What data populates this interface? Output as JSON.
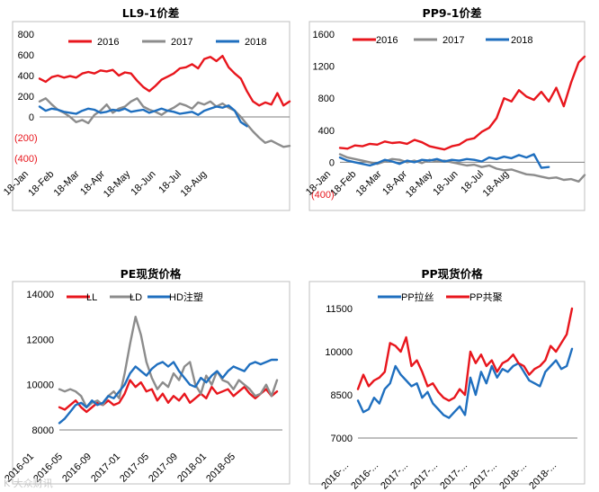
{
  "chart_data": [
    {
      "type": "line",
      "title": "LL9-1价差",
      "ylim": [
        -400,
        800
      ],
      "y_ticks": [
        800,
        600,
        400,
        200,
        0
      ],
      "y_neg_ticks": [
        "(200)",
        "(400)"
      ],
      "x_ticks": [
        "18-Jan",
        "18-Feb",
        "18-Mar",
        "18-Apr",
        "18-May",
        "18-Jun",
        "18-Jul",
        "18-Aug"
      ],
      "x_range": [
        0,
        8.2
      ],
      "grid": false,
      "legend": "top",
      "series": [
        {
          "name": "2016",
          "color": "#e8161d",
          "x": [
            0,
            0.2,
            0.4,
            0.6,
            0.8,
            1.0,
            1.2,
            1.4,
            1.6,
            1.8,
            2.0,
            2.2,
            2.4,
            2.6,
            2.8,
            3.0,
            3.2,
            3.4,
            3.6,
            3.8,
            4.0,
            4.2,
            4.4,
            4.6,
            4.8,
            5.0,
            5.2,
            5.4,
            5.6,
            5.8,
            6.0,
            6.2,
            6.4,
            6.6,
            6.8,
            7.0,
            7.2,
            7.4,
            7.6,
            7.8,
            8.0,
            8.2
          ],
          "values": [
            370,
            340,
            385,
            400,
            380,
            395,
            380,
            420,
            435,
            420,
            450,
            440,
            455,
            400,
            430,
            420,
            350,
            290,
            250,
            300,
            360,
            390,
            420,
            470,
            480,
            510,
            470,
            560,
            580,
            540,
            590,
            480,
            420,
            370,
            250,
            150,
            110,
            140,
            120,
            230,
            110,
            150
          ]
        },
        {
          "name": "2017",
          "color": "#8c8c8c",
          "x": [
            0,
            0.2,
            0.4,
            0.6,
            0.8,
            1.0,
            1.2,
            1.4,
            1.6,
            1.8,
            2.0,
            2.2,
            2.4,
            2.6,
            2.8,
            3.0,
            3.2,
            3.4,
            3.6,
            3.8,
            4.0,
            4.2,
            4.4,
            4.6,
            4.8,
            5.0,
            5.2,
            5.4,
            5.6,
            5.8,
            6.0,
            6.2,
            6.4,
            6.6,
            6.8,
            7.0,
            7.2,
            7.4,
            7.6,
            7.8,
            8.0,
            8.2
          ],
          "values": [
            150,
            180,
            120,
            70,
            40,
            0,
            -50,
            -30,
            -60,
            20,
            60,
            120,
            40,
            80,
            100,
            150,
            180,
            100,
            70,
            50,
            20,
            60,
            90,
            130,
            110,
            80,
            140,
            120,
            150,
            100,
            130,
            90,
            60,
            0,
            -70,
            -140,
            -200,
            -250,
            -230,
            -260,
            -290,
            -280
          ]
        },
        {
          "name": "2018",
          "color": "#1f6fbf",
          "x": [
            0,
            0.2,
            0.4,
            0.6,
            0.8,
            1.0,
            1.2,
            1.4,
            1.6,
            1.8,
            2.0,
            2.2,
            2.4,
            2.6,
            2.8,
            3.0,
            3.2,
            3.4,
            3.6,
            3.8,
            4.0,
            4.2,
            4.4,
            4.6,
            4.8,
            5.0,
            5.2,
            5.4,
            5.6,
            5.8,
            6.0,
            6.2,
            6.4,
            6.6,
            6.8
          ],
          "values": [
            100,
            60,
            80,
            70,
            50,
            40,
            30,
            60,
            80,
            70,
            40,
            50,
            70,
            60,
            80,
            50,
            60,
            70,
            40,
            60,
            80,
            60,
            50,
            30,
            40,
            50,
            20,
            60,
            80,
            100,
            90,
            110,
            60,
            -50,
            -90
          ]
        }
      ]
    },
    {
      "type": "line",
      "title": "PP9-1价差",
      "ylim": [
        -400,
        1600
      ],
      "y_ticks": [
        1600,
        1200,
        800,
        400,
        0
      ],
      "y_neg_ticks": [
        "(400)"
      ],
      "x_ticks": [
        "18-Jan",
        "18-Feb",
        "18-Mar",
        "18-Apr",
        "18-May",
        "18-Jun",
        "18-Jul",
        "18-Aug"
      ],
      "x_range": [
        0,
        8.2
      ],
      "grid": false,
      "legend": "top",
      "series": [
        {
          "name": "2016",
          "color": "#e8161d",
          "x": [
            0,
            0.25,
            0.5,
            0.75,
            1.0,
            1.25,
            1.5,
            1.75,
            2.0,
            2.25,
            2.5,
            2.75,
            3.0,
            3.25,
            3.5,
            3.75,
            4.0,
            4.25,
            4.5,
            4.75,
            5.0,
            5.25,
            5.5,
            5.75,
            6.0,
            6.25,
            6.5,
            6.75,
            7.0,
            7.25,
            7.5,
            7.75,
            8.0,
            8.2
          ],
          "values": [
            180,
            170,
            210,
            200,
            230,
            220,
            260,
            240,
            250,
            230,
            280,
            250,
            200,
            180,
            160,
            200,
            220,
            280,
            300,
            380,
            430,
            550,
            800,
            760,
            900,
            820,
            780,
            880,
            760,
            930,
            700,
            1000,
            1250,
            1320
          ]
        },
        {
          "name": "2017",
          "color": "#8c8c8c",
          "x": [
            0,
            0.25,
            0.5,
            0.75,
            1.0,
            1.25,
            1.5,
            1.75,
            2.0,
            2.25,
            2.5,
            2.75,
            3.0,
            3.25,
            3.5,
            3.75,
            4.0,
            4.25,
            4.5,
            4.75,
            5.0,
            5.25,
            5.5,
            5.75,
            6.0,
            6.25,
            6.5,
            6.75,
            7.0,
            7.25,
            7.5,
            7.75,
            8.0,
            8.2
          ],
          "values": [
            100,
            60,
            40,
            20,
            0,
            -20,
            10,
            40,
            30,
            0,
            20,
            -10,
            30,
            10,
            20,
            0,
            -20,
            -40,
            -30,
            -60,
            -40,
            -80,
            -100,
            -90,
            -120,
            -150,
            -160,
            -180,
            -200,
            -190,
            -220,
            -210,
            -240,
            -160
          ]
        },
        {
          "name": "2018",
          "color": "#1f6fbf",
          "x": [
            0,
            0.25,
            0.5,
            0.75,
            1.0,
            1.25,
            1.5,
            1.75,
            2.0,
            2.25,
            2.5,
            2.75,
            3.0,
            3.25,
            3.5,
            3.75,
            4.0,
            4.25,
            4.5,
            4.75,
            5.0,
            5.25,
            5.5,
            5.75,
            6.0,
            6.25,
            6.5,
            6.75,
            7.0
          ],
          "values": [
            60,
            20,
            0,
            -20,
            -40,
            -10,
            30,
            10,
            -20,
            20,
            0,
            30,
            20,
            40,
            10,
            30,
            20,
            40,
            30,
            10,
            60,
            40,
            70,
            50,
            90,
            60,
            100,
            -70,
            -60
          ]
        }
      ]
    },
    {
      "type": "line",
      "title": "PE现货价格",
      "ylim": [
        8000,
        14000
      ],
      "y_ticks": [
        14000,
        12000,
        10000,
        8000
      ],
      "x_ticks": [
        "2016-01",
        "2016-05",
        "2016-09",
        "2017-01",
        "2017-05",
        "2017-09",
        "2018-01",
        "2018-05"
      ],
      "x_range": [
        0,
        8.2
      ],
      "grid": false,
      "legend": "top",
      "series": [
        {
          "name": "LL",
          "color": "#e8161d",
          "x": [
            0,
            0.2,
            0.4,
            0.6,
            0.8,
            1.0,
            1.2,
            1.4,
            1.6,
            1.8,
            2.0,
            2.2,
            2.4,
            2.6,
            2.8,
            3.0,
            3.2,
            3.4,
            3.6,
            3.8,
            4.0,
            4.2,
            4.4,
            4.6,
            4.8,
            5.0,
            5.2,
            5.4,
            5.6,
            5.8,
            6.0,
            6.2,
            6.4,
            6.6,
            6.8,
            7.0,
            7.2,
            7.4,
            7.6,
            7.8,
            8.0
          ],
          "values": [
            9000,
            8900,
            9100,
            9300,
            9000,
            8800,
            9000,
            9200,
            9100,
            9300,
            9100,
            9200,
            9600,
            10200,
            9900,
            10100,
            9700,
            9800,
            9300,
            9600,
            9200,
            9500,
            9300,
            9600,
            9200,
            9400,
            9600,
            9400,
            9900,
            9600,
            9700,
            9800,
            9500,
            9700,
            9900,
            9600,
            9400,
            9600,
            9800,
            9500,
            9700
          ]
        },
        {
          "name": "LD",
          "color": "#8c8c8c",
          "x": [
            0,
            0.2,
            0.4,
            0.6,
            0.8,
            1.0,
            1.2,
            1.4,
            1.6,
            1.8,
            2.0,
            2.2,
            2.4,
            2.6,
            2.8,
            3.0,
            3.2,
            3.4,
            3.6,
            3.8,
            4.0,
            4.2,
            4.4,
            4.6,
            4.8,
            5.0,
            5.2,
            5.4,
            5.6,
            5.8,
            6.0,
            6.2,
            6.4,
            6.6,
            6.8,
            7.0,
            7.2,
            7.4,
            7.6,
            7.8,
            8.0
          ],
          "values": [
            9800,
            9700,
            9800,
            9700,
            9500,
            9000,
            9200,
            9300,
            9100,
            9500,
            9700,
            9400,
            10500,
            11800,
            13000,
            12200,
            11000,
            10300,
            9800,
            10100,
            9900,
            10500,
            10200,
            10800,
            11000,
            10000,
            9600,
            10400,
            10000,
            10600,
            10200,
            10100,
            9800,
            10200,
            10000,
            9800,
            9500,
            9600,
            10000,
            9500,
            10200
          ]
        },
        {
          "name": "HD注塑",
          "color": "#1f6fbf",
          "x": [
            0,
            0.2,
            0.4,
            0.6,
            0.8,
            1.0,
            1.2,
            1.4,
            1.6,
            1.8,
            2.0,
            2.2,
            2.4,
            2.6,
            2.8,
            3.0,
            3.2,
            3.4,
            3.6,
            3.8,
            4.0,
            4.2,
            4.4,
            4.6,
            4.8,
            5.0,
            5.2,
            5.4,
            5.6,
            5.8,
            6.0,
            6.2,
            6.4,
            6.6,
            6.8,
            7.0,
            7.2,
            7.4,
            7.6,
            7.8,
            8.0
          ],
          "values": [
            8300,
            8500,
            8800,
            9100,
            9200,
            9000,
            9300,
            9100,
            9200,
            9500,
            9400,
            9700,
            10000,
            10500,
            10800,
            10600,
            10400,
            10700,
            10900,
            11000,
            10800,
            11000,
            10600,
            10300,
            10000,
            9900,
            10300,
            10100,
            10400,
            10600,
            10300,
            10600,
            10800,
            10700,
            10600,
            10900,
            11000,
            10900,
            11000,
            11100,
            11100
          ]
        }
      ]
    },
    {
      "type": "line",
      "title": "PP现货价格",
      "ylim": [
        7000,
        12000
      ],
      "y_ticks": [
        11500,
        10000,
        8500,
        7000
      ],
      "x_ticks": [
        "2016-...",
        "2016-...",
        "2017-...",
        "2017-...",
        "2017-...",
        "2017-...",
        "2018-...",
        "2018-..."
      ],
      "x_range": [
        0,
        8.2
      ],
      "grid": false,
      "legend": "top",
      "series": [
        {
          "name": "PP拉丝",
          "color": "#1f6fbf",
          "x": [
            0,
            0.2,
            0.4,
            0.6,
            0.8,
            1.0,
            1.2,
            1.4,
            1.6,
            1.8,
            2.0,
            2.2,
            2.4,
            2.6,
            2.8,
            3.0,
            3.2,
            3.4,
            3.6,
            3.8,
            4.0,
            4.2,
            4.4,
            4.6,
            4.8,
            5.0,
            5.2,
            5.4,
            5.6,
            5.8,
            6.0,
            6.2,
            6.4,
            6.6,
            6.8,
            7.0,
            7.2,
            7.4,
            7.6,
            7.8,
            8.0
          ],
          "values": [
            8300,
            7900,
            8000,
            8400,
            8200,
            8700,
            8900,
            9500,
            9200,
            9000,
            8800,
            8900,
            8400,
            8600,
            8200,
            8000,
            7800,
            7700,
            7900,
            8100,
            7800,
            9100,
            8500,
            9300,
            8900,
            9500,
            9100,
            9400,
            9300,
            9500,
            9600,
            9300,
            9000,
            8900,
            8800,
            9300,
            9500,
            9700,
            9400,
            9500,
            10100
          ]
        },
        {
          "name": "PP共聚",
          "color": "#e8161d",
          "x": [
            0,
            0.2,
            0.4,
            0.6,
            0.8,
            1.0,
            1.2,
            1.4,
            1.6,
            1.8,
            2.0,
            2.2,
            2.4,
            2.6,
            2.8,
            3.0,
            3.2,
            3.4,
            3.6,
            3.8,
            4.0,
            4.2,
            4.4,
            4.6,
            4.8,
            5.0,
            5.2,
            5.4,
            5.6,
            5.8,
            6.0,
            6.2,
            6.4,
            6.6,
            6.8,
            7.0,
            7.2,
            7.4,
            7.6,
            7.8,
            8.0
          ],
          "values": [
            8700,
            9200,
            8800,
            9000,
            9100,
            9300,
            10300,
            10200,
            10000,
            10500,
            9500,
            9700,
            9300,
            8800,
            8900,
            8600,
            8400,
            8300,
            8400,
            8700,
            8500,
            10000,
            9600,
            9900,
            9500,
            9700,
            9300,
            9600,
            9700,
            9900,
            9600,
            9500,
            9200,
            9400,
            9500,
            9700,
            10200,
            10000,
            10300,
            10600,
            11500
          ]
        }
      ]
    }
  ],
  "watermark": "K  大众财讯"
}
